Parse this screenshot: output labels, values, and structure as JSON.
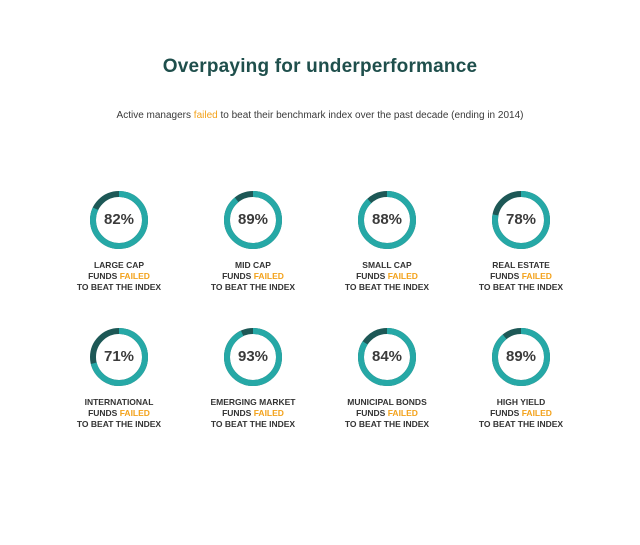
{
  "header": {
    "title": "Overpaying for underperformance",
    "subtitle_before": "Active managers ",
    "subtitle_highlight": "failed",
    "subtitle_after": " to beat their benchmark index over the past decade (ending in 2014)"
  },
  "colors": {
    "ring_main": "#26a8a6",
    "ring_remainder": "#1d5856",
    "accent": "#f3a21b",
    "title": "#1f4f4c"
  },
  "chart_data": {
    "type": "donut",
    "title": "Overpaying for underperformance",
    "subtitle": "Active managers failed to beat their benchmark index over the past decade (ending in 2014)",
    "unit": "%",
    "items": [
      {
        "category": "LARGE CAP",
        "value": 82,
        "label": "82%"
      },
      {
        "category": "MID CAP",
        "value": 89,
        "label": "89%"
      },
      {
        "category": "SMALL CAP",
        "value": 88,
        "label": "88%"
      },
      {
        "category": "REAL ESTATE",
        "value": 78,
        "label": "78%"
      },
      {
        "category": "INTERNATIONAL",
        "value": 71,
        "label": "71%"
      },
      {
        "category": "EMERGING MARKET",
        "value": 93,
        "label": "93%"
      },
      {
        "category": "MUNICIPAL BONDS",
        "value": 84,
        "label": "84%"
      },
      {
        "category": "HIGH YIELD",
        "value": 89,
        "label": "89%"
      }
    ],
    "caption_line2_prefix": "FUNDS ",
    "caption_line2_highlight": "FAILED",
    "caption_line3": "TO BEAT THE INDEX"
  }
}
